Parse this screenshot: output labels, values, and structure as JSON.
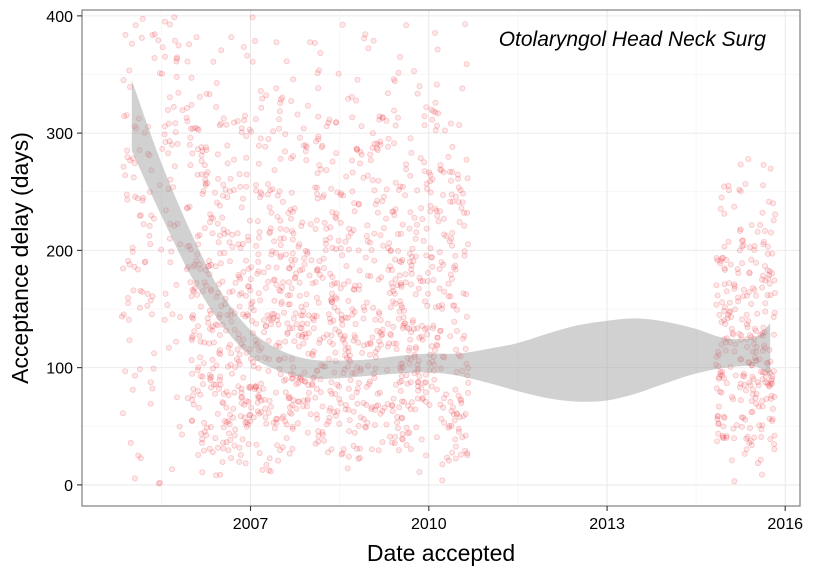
{
  "chart_data": {
    "type": "scatter",
    "annotation": "Otolaryngol Head Neck Surg",
    "xlabel": "Date accepted",
    "ylabel": "Acceptance delay (days)",
    "x_tick_labels": [
      "2007",
      "2010",
      "2013",
      "2016"
    ],
    "x_tick_values": [
      "2007-01-01",
      "2010-01-01",
      "2013-01-01",
      "2016-01-01"
    ],
    "y_tick_labels": [
      "0",
      "100",
      "200",
      "300",
      "400"
    ],
    "y_tick_values": [
      0,
      100,
      200,
      300,
      400
    ],
    "xlim": [
      "2004-03-01",
      "2016-04-01"
    ],
    "ylim": [
      -18,
      405
    ],
    "grid": true,
    "point_color": "#e8222a",
    "point_fill_opacity": 0.1,
    "band_color": "#999999",
    "smooth_band": [
      {
        "x": "2005-01-01",
        "lower": 285,
        "upper": 345
      },
      {
        "x": "2005-07-01",
        "lower": 230,
        "upper": 275
      },
      {
        "x": "2006-01-01",
        "lower": 178,
        "upper": 215
      },
      {
        "x": "2006-07-01",
        "lower": 138,
        "upper": 165
      },
      {
        "x": "2007-01-01",
        "lower": 110,
        "upper": 132
      },
      {
        "x": "2007-07-01",
        "lower": 97,
        "upper": 115
      },
      {
        "x": "2008-01-01",
        "lower": 91,
        "upper": 107
      },
      {
        "x": "2008-07-01",
        "lower": 91,
        "upper": 106
      },
      {
        "x": "2009-01-01",
        "lower": 93,
        "upper": 107
      },
      {
        "x": "2009-07-01",
        "lower": 95,
        "upper": 110
      },
      {
        "x": "2010-01-01",
        "lower": 96,
        "upper": 112
      },
      {
        "x": "2010-07-01",
        "lower": 93,
        "upper": 112
      },
      {
        "x": "2011-01-01",
        "lower": 87,
        "upper": 116
      },
      {
        "x": "2011-07-01",
        "lower": 80,
        "upper": 121
      },
      {
        "x": "2012-01-01",
        "lower": 74,
        "upper": 129
      },
      {
        "x": "2012-07-01",
        "lower": 71,
        "upper": 136
      },
      {
        "x": "2013-01-01",
        "lower": 72,
        "upper": 140
      },
      {
        "x": "2013-07-01",
        "lower": 78,
        "upper": 142
      },
      {
        "x": "2014-01-01",
        "lower": 87,
        "upper": 139
      },
      {
        "x": "2014-07-01",
        "lower": 95,
        "upper": 133
      },
      {
        "x": "2015-01-01",
        "lower": 100,
        "upper": 125
      },
      {
        "x": "2015-07-01",
        "lower": 101,
        "upper": 126
      },
      {
        "x": "2015-10-01",
        "lower": 93,
        "upper": 138
      }
    ],
    "clusters": [
      {
        "x_from": "2004-11-01",
        "x_to": "2006-01-01",
        "n": 160,
        "y_shape": "u",
        "y_min": 0,
        "y_max": 400,
        "y_mode": 200
      },
      {
        "x_from": "2006-01-01",
        "x_to": "2010-09-01",
        "n": 1350,
        "y_shape": "tri",
        "y_min": 0,
        "y_max": 405,
        "y_mode": 70
      },
      {
        "x_from": "2014-11-01",
        "x_to": "2015-11-01",
        "n": 280,
        "y_shape": "tri",
        "y_min": 0,
        "y_max": 290,
        "y_mode": 90
      }
    ]
  }
}
